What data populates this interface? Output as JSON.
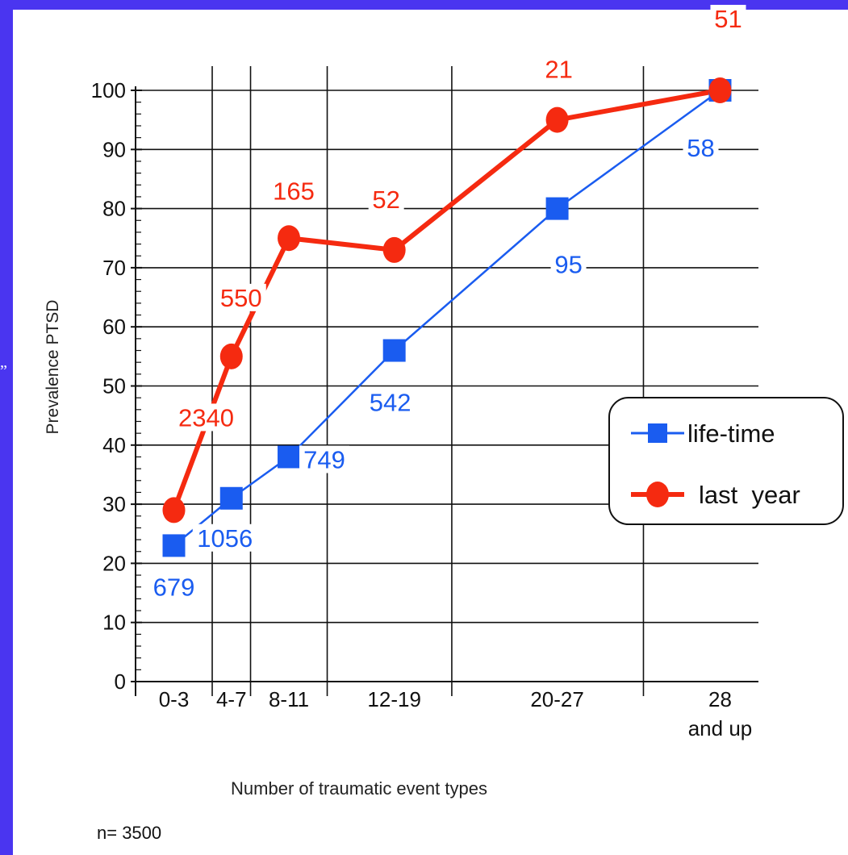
{
  "chart_data": {
    "type": "line",
    "title": "",
    "xlabel": "Number of traumatic event types",
    "ylabel": "Prevalence PTSD",
    "footnote": "n= 3500",
    "stray_mark": "”",
    "ylim": [
      0,
      100
    ],
    "yticks": [
      "0",
      "10",
      "20",
      "30",
      "40",
      "50",
      "60",
      "70",
      "80",
      "90",
      "100"
    ],
    "categories": [
      "0-3",
      "4-7",
      "8-11",
      "12-19",
      "20-27",
      "28\nand up"
    ],
    "category_lines": [
      [
        "0-3"
      ],
      [
        "4-7"
      ],
      [
        "8-11"
      ],
      [
        "12-19"
      ],
      [
        "20-27"
      ],
      [
        "28",
        "and up"
      ]
    ],
    "x_positions": [
      1.5,
      4.5,
      7.5,
      13,
      21.5,
      30
    ],
    "xlim": [
      -0.5,
      32
    ],
    "grid": true,
    "legend_position": "right",
    "series": [
      {
        "name": "life-time",
        "color": "#1a5cf0",
        "marker": "square",
        "values": [
          23,
          31,
          38,
          56,
          80,
          100
        ],
        "point_labels": [
          "679",
          "1056",
          "749",
          "542",
          "95",
          "58"
        ]
      },
      {
        "name": "last  year",
        "color": "#f52a10",
        "marker": "circle",
        "values": [
          29,
          55,
          75,
          73,
          95,
          100
        ],
        "point_labels": [
          "2340",
          "550",
          "165",
          "52",
          "21",
          "51"
        ]
      }
    ]
  }
}
